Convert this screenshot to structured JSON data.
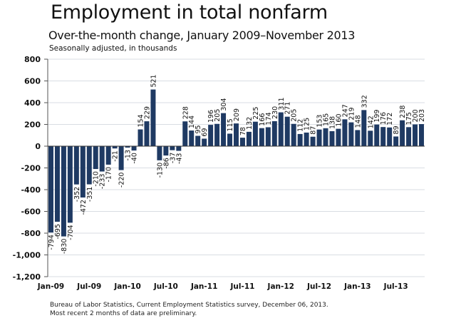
{
  "chart_data": {
    "type": "bar",
    "title": "Employment in total nonfarm",
    "subtitle": "Over-the-month change, January 2009–November 2013",
    "note": "Seasonally adjusted, in thousands",
    "xlabel": "",
    "ylabel": "",
    "ylim": [
      -1200,
      800
    ],
    "yticks": [
      800,
      600,
      400,
      200,
      0,
      -200,
      -400,
      -600,
      -800,
      -1000,
      -1200
    ],
    "ytick_labels": [
      "800",
      "600",
      "400",
      "200",
      "0",
      "-200",
      "-400",
      "-600",
      "-800",
      "-1,000",
      "-1,200"
    ],
    "xtick_labels": [
      "Jan-09",
      "Jul-09",
      "Jan-10",
      "Jul-10",
      "Jan-11",
      "Jul-11",
      "Jan-12",
      "Jul-12",
      "Jan-13",
      "Jul-13"
    ],
    "xtick_every": 6,
    "grid": true,
    "bar_color": "#1f3a63",
    "categories": [
      "Jan-09",
      "Feb-09",
      "Mar-09",
      "Apr-09",
      "May-09",
      "Jun-09",
      "Jul-09",
      "Aug-09",
      "Sep-09",
      "Oct-09",
      "Nov-09",
      "Dec-09",
      "Jan-10",
      "Feb-10",
      "Mar-10",
      "Apr-10",
      "May-10",
      "Jun-10",
      "Jul-10",
      "Aug-10",
      "Sep-10",
      "Oct-10",
      "Nov-10",
      "Dec-10",
      "Jan-11",
      "Feb-11",
      "Mar-11",
      "Apr-11",
      "May-11",
      "Jun-11",
      "Jul-11",
      "Aug-11",
      "Sep-11",
      "Oct-11",
      "Nov-11",
      "Dec-11",
      "Jan-12",
      "Feb-12",
      "Mar-12",
      "Apr-12",
      "May-12",
      "Jun-12",
      "Jul-12",
      "Aug-12",
      "Sep-12",
      "Oct-12",
      "Nov-12",
      "Dec-12",
      "Jan-13",
      "Feb-13",
      "Mar-13",
      "Apr-13",
      "May-13",
      "Jun-13",
      "Jul-13",
      "Aug-13",
      "Sep-13",
      "Oct-13",
      "Nov-13"
    ],
    "values": [
      -794,
      -695,
      -830,
      -704,
      -352,
      -472,
      -351,
      -210,
      -233,
      -170,
      -21,
      -220,
      -13,
      -40,
      154,
      229,
      521,
      -130,
      -86,
      -37,
      -43,
      228,
      144,
      95,
      69,
      196,
      205,
      304,
      115,
      209,
      78,
      132,
      225,
      166,
      174,
      230,
      311,
      271,
      205,
      112,
      125,
      87,
      153,
      165,
      138,
      160,
      247,
      219,
      148,
      332,
      142,
      199,
      176,
      172,
      89,
      238,
      175,
      200,
      203
    ]
  },
  "footer": {
    "source": "Bureau of Labor Statistics, Current Employment Statistics survey, December 06, 2013.",
    "preliminary_note": "Most recent 2 months of data are preliminary."
  }
}
